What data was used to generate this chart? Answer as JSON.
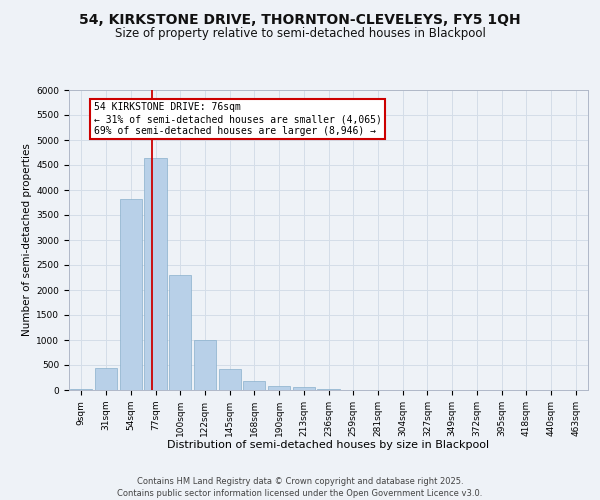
{
  "title": "54, KIRKSTONE DRIVE, THORNTON-CLEVELEYS, FY5 1QH",
  "subtitle": "Size of property relative to semi-detached houses in Blackpool",
  "xlabel": "Distribution of semi-detached houses by size in Blackpool",
  "ylabel": "Number of semi-detached properties",
  "categories": [
    "9sqm",
    "31sqm",
    "54sqm",
    "77sqm",
    "100sqm",
    "122sqm",
    "145sqm",
    "168sqm",
    "190sqm",
    "213sqm",
    "236sqm",
    "259sqm",
    "281sqm",
    "304sqm",
    "327sqm",
    "349sqm",
    "372sqm",
    "395sqm",
    "418sqm",
    "440sqm",
    "463sqm"
  ],
  "values": [
    30,
    450,
    3820,
    4650,
    2300,
    1000,
    420,
    180,
    80,
    60,
    20,
    5,
    2,
    1,
    0,
    0,
    0,
    0,
    0,
    0,
    0
  ],
  "bar_color": "#b8d0e8",
  "bar_edge_color": "#8ab0cc",
  "grid_color": "#d4dde8",
  "background_color": "#eef2f7",
  "plot_bg_color": "#eef2f7",
  "red_line_x": 2.87,
  "annotation_line1": "54 KIRKSTONE DRIVE: 76sqm",
  "annotation_line2": "← 31% of semi-detached houses are smaller (4,065)",
  "annotation_line3": "69% of semi-detached houses are larger (8,946) →",
  "annotation_box_color": "#ffffff",
  "annotation_border_color": "#cc0000",
  "footer_text": "Contains HM Land Registry data © Crown copyright and database right 2025.\nContains public sector information licensed under the Open Government Licence v3.0.",
  "ylim": [
    0,
    6000
  ],
  "yticks": [
    0,
    500,
    1000,
    1500,
    2000,
    2500,
    3000,
    3500,
    4000,
    4500,
    5000,
    5500,
    6000
  ],
  "title_fontsize": 10,
  "subtitle_fontsize": 8.5,
  "xlabel_fontsize": 8,
  "ylabel_fontsize": 7.5,
  "tick_fontsize": 6.5,
  "annotation_fontsize": 7,
  "footer_fontsize": 6
}
